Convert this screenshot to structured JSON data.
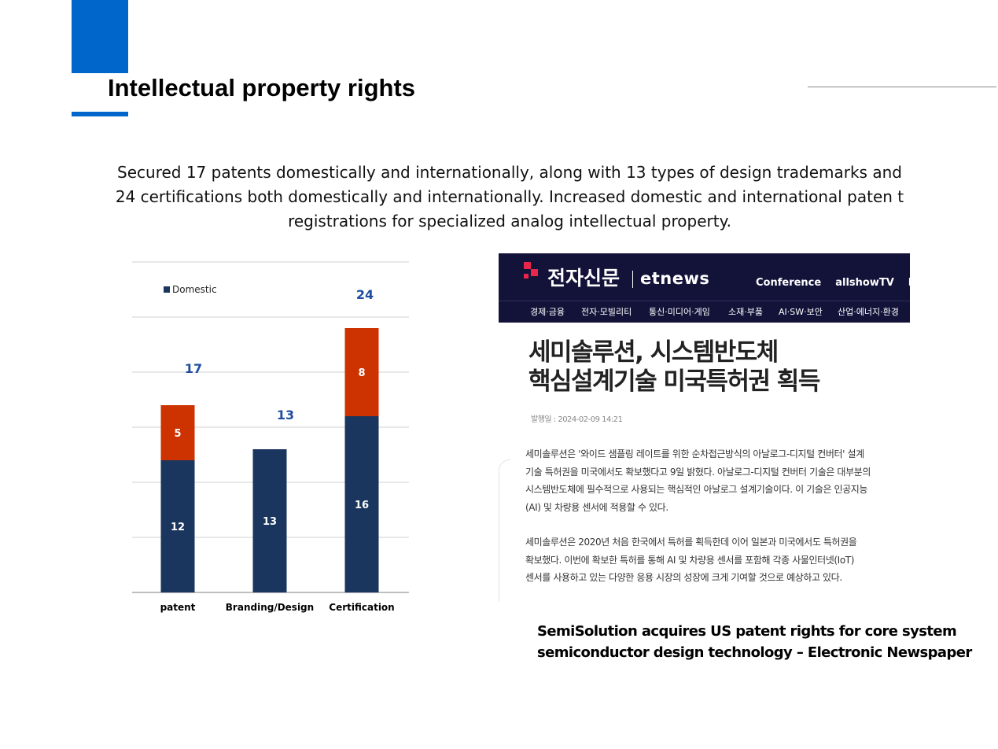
{
  "slide": {
    "title": "Intellectual property rights",
    "intro": "Secured 17 patents domestically and internationally, along with 13 types of design trademarks and 24 certifications both domestically and internationally. Increased domestic and international paten t registrations for specialized analog intellectual property.",
    "accent_color": "#0066cc"
  },
  "chart_data": {
    "type": "bar",
    "stacked": true,
    "categories": [
      "patent",
      "Branding/Design",
      "Certification"
    ],
    "series": [
      {
        "name": "Domestic",
        "values": [
          12,
          13,
          16
        ],
        "color": "#1a355e",
        "labels": [
          "12",
          "13",
          "16"
        ]
      },
      {
        "values": [
          5,
          0,
          8
        ],
        "color": "#cc3300",
        "labels": [
          "5",
          "",
          "8"
        ]
      }
    ],
    "totals": [
      "17",
      "13",
      "24"
    ],
    "legend": "top-left",
    "grid": true,
    "total_label_color": "#1f4e9e"
  },
  "news": {
    "logo_kr": "전자신문",
    "logo_en": "etnews",
    "top_links": [
      "Conference",
      "allshowTV",
      "En"
    ],
    "menu": [
      "경제·금융",
      "전자·모빌리티",
      "통신·미디어·게임",
      "소재·부품",
      "AI·SW·보안",
      "산업·에너지·환경"
    ],
    "headline": [
      "세미솔루션, 시스템반도체",
      "핵심설계기술 미국특허권 획득"
    ],
    "date": "발행일 : 2024-02-09 14:21",
    "para1": [
      "세미솔루션은 '와이드 샘플링 레이트를 위한 순차접근방식의 아날로그-디지털 컨버터' 설계",
      "기술 특허권을 미국에서도 확보했다고 9일 밝혔다. 아날로그-디지털 컨버터 기술은 대부분의",
      "시스템반도체에 필수적으로 사용되는 핵심적인 아날로그 설계기술이다. 이 기술은 인공지능",
      "(AI) 및 차량용 센서에 적용할 수 있다."
    ],
    "para2": [
      "세미솔루션은 2020년 처음 한국에서 특허를 획득한데 이어 일본과 미국에서도 특허권을",
      "확보했다. 이번에 확보한 특허를 통해 AI 및 차량용 센서를 포함해 각종 사물인터넷(IoT)",
      "센서를 사용하고 있는 다양한 응용 시장의 성장에 크게 기여할 것으로 예상하고 있다."
    ],
    "bar_color": "#13133a",
    "logo_color": "#e8254a"
  },
  "caption": [
    "SemiSolution acquires US patent rights for core system",
    "semiconductor design technology – Electronic Newspaper"
  ]
}
